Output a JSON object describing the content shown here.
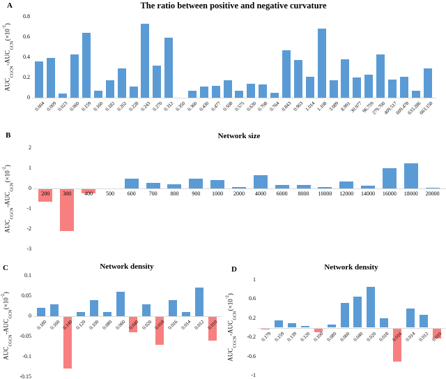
{
  "figure_title": "Four-panel bar chart figure",
  "colors": {
    "positive_bar": "#5B9BD5",
    "negative_bar": "#F87F7F",
    "axis_line": "#D9D9D9",
    "text": "#000000"
  },
  "ylabel": {
    "a1": "AUC",
    "s1": "CGCN",
    "a2": "-AUC",
    "s2": "GCN",
    "a3": "(×10",
    "e1": "-2",
    "a4": ")"
  },
  "chart_data": [
    {
      "type": "bar",
      "panel": "A",
      "title": "The ratio between positive and negative curvature",
      "xlabel": "",
      "ylabel": "AUC_CGCN-AUC_GCN(×10^-2)",
      "ylim": [
        0,
        0.8
      ],
      "yticks": [
        0.8,
        0.6,
        0.4,
        0.2,
        0
      ],
      "legend": "none",
      "grid": false,
      "categories": [
        "0.004",
        "0.009",
        "0.023",
        "0.060",
        "0.159",
        "0.160",
        "0.182",
        "0.202",
        "0.228",
        "0.243",
        "0.270",
        "0.312",
        "0.350",
        "0.360",
        "0.430",
        "0.477",
        "0.508",
        "0.575",
        "0.630",
        "0.708",
        "0.764",
        "0.843",
        "0.903",
        "1.014",
        "1.108",
        "3.089",
        "8.991",
        "30.977",
        "96.759",
        "279.700",
        "409.517",
        "609.478",
        "633.286",
        "663.158"
      ],
      "values": [
        0.36,
        0.39,
        0.04,
        0.43,
        0.64,
        0.07,
        0.17,
        0.29,
        0.11,
        0.73,
        0.32,
        0.59,
        0,
        0.07,
        0.11,
        0.12,
        0.17,
        0.07,
        0.14,
        0.13,
        0.05,
        0.47,
        0.37,
        0.21,
        0.68,
        0.17,
        0.38,
        0.2,
        0.23,
        0.43,
        0.18,
        0.21,
        0.07,
        0.29
      ]
    },
    {
      "type": "bar",
      "panel": "B",
      "title": "Network size",
      "xlabel": "",
      "ylabel": "AUC_CGCN-AUC_GCN(×10^-2)",
      "ylim": [
        -3,
        2
      ],
      "yticks": [
        2,
        1,
        0,
        -1,
        -2,
        -3
      ],
      "legend": "none",
      "grid": false,
      "categories": [
        "200",
        "300",
        "400",
        "500",
        "600",
        "700",
        "800",
        "900",
        "1000",
        "2000",
        "4000",
        "6000",
        "8000",
        "10000",
        "12000",
        "14000",
        "16000",
        "18000",
        "20000"
      ],
      "values": [
        -0.65,
        -2.1,
        -0.25,
        -0.05,
        0.5,
        0.28,
        0.22,
        0.48,
        0.4,
        0.06,
        0.65,
        0.16,
        0.16,
        0.06,
        0.33,
        0.14,
        1.0,
        1.25,
        0.05
      ]
    },
    {
      "type": "bar",
      "panel": "C",
      "title": "Network density",
      "xlabel": "",
      "ylabel": "AUC_CGCN-AUC_GCN(×10^-2)",
      "ylim": [
        -0.15,
        0.1
      ],
      "yticks": [
        0.1,
        0.05,
        0,
        -0.05,
        -0.1,
        -0.15
      ],
      "legend": "none",
      "grid": false,
      "categories": [
        "0.180",
        "0.160",
        "0.140",
        "0.120",
        "0.100",
        "0.080",
        "0.060",
        "0.040",
        "0.020",
        "0.018",
        "0.016",
        "0.014",
        "0.012",
        "0.010"
      ],
      "values": [
        0.02,
        0.03,
        -0.13,
        0.01,
        0.04,
        0.01,
        0.06,
        -0.04,
        0.03,
        -0.07,
        0.04,
        0.01,
        0.07,
        -0.06
      ]
    },
    {
      "type": "bar",
      "panel": "D",
      "title": "Network density",
      "xlabel": "",
      "ylabel": "AUC_CGCN-AUC_GCN(×10^-2)",
      "ylim": [
        -1,
        1
      ],
      "yticks": [
        1,
        0.6,
        0.2,
        -0.2,
        -0.6,
        -1
      ],
      "legend": "none",
      "grid": false,
      "categories": [
        "0.179",
        "0.159",
        "0.139",
        "0.120",
        "0.100",
        "0.080",
        "0.060",
        "0.040",
        "0.020",
        "0.018",
        "0.016",
        "0.014",
        "0.012",
        "0.010"
      ],
      "values": [
        -0.04,
        0.15,
        0.1,
        0.04,
        -0.1,
        0.06,
        0.52,
        0.65,
        0.86,
        0.2,
        -0.71,
        0.4,
        0.27,
        -0.23
      ]
    }
  ]
}
